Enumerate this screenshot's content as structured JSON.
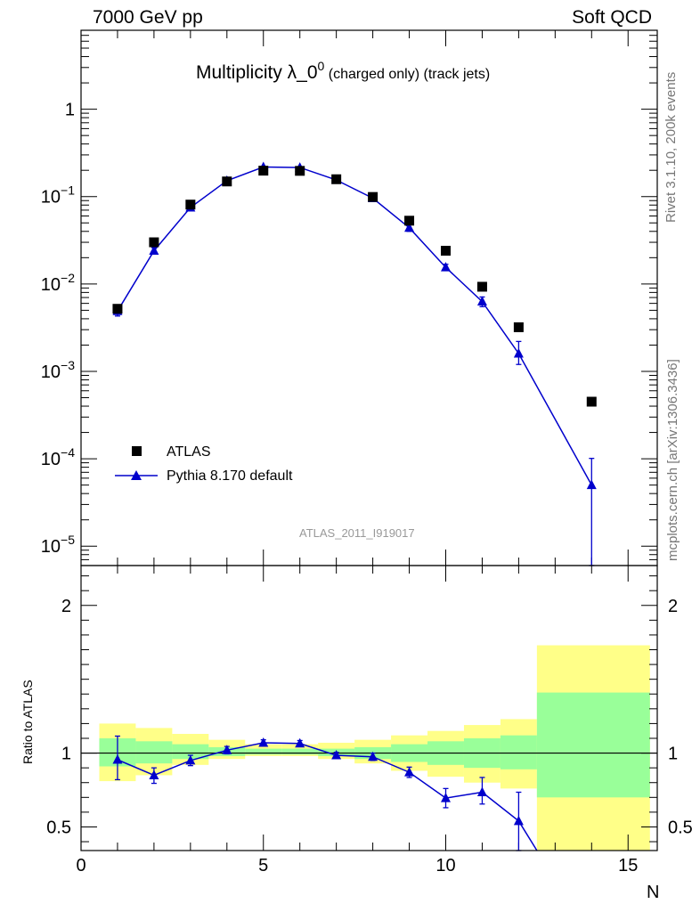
{
  "header": {
    "energy_label": "7000 GeV pp",
    "process_label": "Soft QCD",
    "rivet_label": "Rivet 3.1.10,  200k events",
    "mcplots_label": "mcplots.cern.ch [arXiv:1306.3436]",
    "analysis_label": "ATLAS_2011_I919017"
  },
  "chart_data": [
    {
      "panel": "main",
      "type": "scatter",
      "title": "Multiplicity λ_0⁰ (charged only) (track jets)",
      "title_parts": {
        "main": "Multiplicity λ_0",
        "sup": "0",
        "suffix": " (charged only) (track jets)"
      },
      "yscale": "log",
      "ylim": [
        6e-06,
        8
      ],
      "xlim": [
        0,
        15.8
      ],
      "y_tick_labels": [
        {
          "v": 1,
          "base": "1",
          "exp": ""
        },
        {
          "v": 0.1,
          "base": "10",
          "exp": "−1"
        },
        {
          "v": 0.01,
          "base": "10",
          "exp": "−2"
        },
        {
          "v": 0.001,
          "base": "10",
          "exp": "−3"
        },
        {
          "v": 0.0001,
          "base": "10",
          "exp": "−4"
        },
        {
          "v": 1e-05,
          "base": "10",
          "exp": "−5"
        }
      ],
      "legend_position": "lower-left",
      "series": [
        {
          "name": "ATLAS",
          "color": "#000000",
          "marker": "square",
          "x": [
            1,
            2,
            3,
            4,
            5,
            6,
            7,
            8,
            9,
            10,
            11,
            12,
            14
          ],
          "y": [
            0.0052,
            0.03,
            0.081,
            0.149,
            0.198,
            0.197,
            0.158,
            0.099,
            0.053,
            0.024,
            0.0093,
            0.0032,
            0.00045
          ]
        },
        {
          "name": "Pythia 8.170 default",
          "color": "#0000cc",
          "marker": "triangle",
          "x": [
            1,
            2,
            3,
            4,
            5,
            6,
            7,
            8,
            9,
            10,
            11,
            12,
            14
          ],
          "y": [
            0.0049,
            0.024,
            0.075,
            0.152,
            0.218,
            0.215,
            0.155,
            0.096,
            0.044,
            0.0155,
            0.0063,
            0.0016,
            5e-05
          ],
          "yerr_low": [
            0.0043,
            0.022,
            0.07,
            0.146,
            0.211,
            0.208,
            0.15,
            0.092,
            0.04,
            0.0143,
            0.0055,
            0.0012,
            1e-06
          ],
          "yerr_high": [
            0.0055,
            0.026,
            0.08,
            0.158,
            0.225,
            0.222,
            0.16,
            0.1,
            0.048,
            0.0168,
            0.0071,
            0.0022,
            0.000101
          ]
        }
      ]
    },
    {
      "panel": "ratio",
      "type": "line",
      "ylabel": "Ratio to ATLAS",
      "xlabel": "N",
      "ylim": [
        0.34,
        2.27
      ],
      "xlim": [
        0,
        15.8
      ],
      "y_ticks": [
        0.5,
        1,
        2
      ],
      "x_ticks": [
        0,
        5,
        10,
        15
      ],
      "reference_line": 1,
      "bands": {
        "bins": [
          [
            0.5,
            1.5
          ],
          [
            1.5,
            2.5
          ],
          [
            2.5,
            3.5
          ],
          [
            3.5,
            4.5
          ],
          [
            4.5,
            5.5
          ],
          [
            5.5,
            6.5
          ],
          [
            6.5,
            7.5
          ],
          [
            7.5,
            8.5
          ],
          [
            8.5,
            9.5
          ],
          [
            9.5,
            10.5
          ],
          [
            10.5,
            11.5
          ],
          [
            11.5,
            12.5
          ],
          [
            12.5,
            15.6
          ]
        ],
        "yellow_low": [
          0.81,
          0.85,
          0.92,
          0.96,
          0.98,
          0.98,
          0.96,
          0.93,
          0.88,
          0.84,
          0.8,
          0.76,
          0.34
        ],
        "yellow_high": [
          1.2,
          1.17,
          1.13,
          1.09,
          1.06,
          1.06,
          1.07,
          1.09,
          1.12,
          1.15,
          1.19,
          1.23,
          1.73
        ],
        "green_low": [
          0.91,
          0.93,
          0.96,
          0.98,
          0.99,
          0.99,
          0.98,
          0.96,
          0.94,
          0.92,
          0.9,
          0.89,
          0.7
        ],
        "green_high": [
          1.1,
          1.08,
          1.06,
          1.04,
          1.03,
          1.03,
          1.03,
          1.04,
          1.06,
          1.08,
          1.1,
          1.12,
          1.41
        ],
        "yellow_color": "#ffff88",
        "green_color": "#99ff99"
      },
      "series": [
        {
          "name": "Pythia 8.170 default",
          "color": "#0000cc",
          "x": [
            1,
            2,
            3,
            4,
            5,
            6,
            7,
            8,
            9,
            10,
            11,
            12,
            12.5
          ],
          "y": [
            0.955,
            0.85,
            0.95,
            1.02,
            1.07,
            1.065,
            0.985,
            0.975,
            0.87,
            0.695,
            0.735,
            0.54,
            0.34
          ],
          "yerr_low": [
            0.82,
            0.795,
            0.915,
            0.995,
            1.05,
            1.045,
            0.965,
            0.95,
            0.835,
            0.63,
            0.655,
            0.34,
            null
          ],
          "yerr_high": [
            1.115,
            0.9,
            0.985,
            1.045,
            1.09,
            1.085,
            1.005,
            1.0,
            0.905,
            0.76,
            0.835,
            0.735,
            null
          ],
          "marker_count": 12
        }
      ]
    }
  ]
}
